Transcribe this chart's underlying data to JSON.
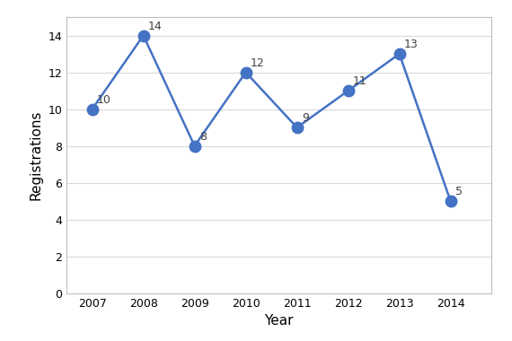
{
  "years": [
    2007,
    2008,
    2009,
    2010,
    2011,
    2012,
    2013,
    2014
  ],
  "values": [
    10,
    14,
    8,
    12,
    9,
    11,
    13,
    5
  ],
  "line_color": "#4472C4",
  "marker_color": "#4472C4",
  "marker_style": "o",
  "marker_size": 9,
  "line_width": 1.8,
  "xlabel": "Year",
  "ylabel": "Registrations",
  "ylim": [
    0,
    15
  ],
  "yticks": [
    0,
    2,
    4,
    6,
    8,
    10,
    12,
    14
  ],
  "xlim": [
    2006.5,
    2014.8
  ],
  "grid_color": "#d9d9d9",
  "background_color": "#ffffff",
  "label_fontsize": 11,
  "annotation_fontsize": 9,
  "annotation_color": "#404040",
  "spine_color": "#bfbfbf",
  "tick_fontsize": 9
}
